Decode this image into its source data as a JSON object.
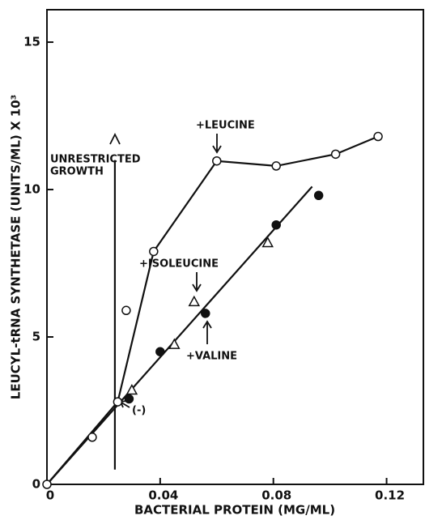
{
  "chart_data": {
    "type": "scatter",
    "xlabel": "BACTERIAL PROTEIN (MG/ML)",
    "ylabel": "LEUCYL-tRNA SYNTHETASE (UNITS/ML) X 10³",
    "xlim": [
      0,
      0.133
    ],
    "ylim": [
      0,
      16.1
    ],
    "xticks": [
      0,
      0.04,
      0.08,
      0.12
    ],
    "yticks": [
      0,
      5,
      10,
      15
    ],
    "series": [
      {
        "marker": "open-circle",
        "x": [
          0,
          0.016,
          0.025,
          0.028,
          0.0377,
          0.06,
          0.081,
          0.102,
          0.117
        ],
        "values": [
          0,
          1.6,
          2.8,
          5.9,
          7.9,
          10.97,
          10.8,
          11.2,
          11.8
        ]
      },
      {
        "marker": "filled-circle",
        "x": [
          0.029,
          0.04,
          0.056,
          0.081,
          0.096
        ],
        "values": [
          2.9,
          4.5,
          5.8,
          8.8,
          9.8
        ]
      },
      {
        "marker": "triangle",
        "x": [
          0.03,
          0.045,
          0.052,
          0.078
        ],
        "values": [
          3.2,
          4.75,
          6.2,
          8.2
        ]
      },
      {
        "marker": "line",
        "x": [
          0,
          0.025,
          0.0377,
          0.06,
          0.081,
          0.102,
          0.117
        ],
        "values": [
          0,
          2.8,
          7.9,
          10.97,
          10.8,
          11.2,
          11.8
        ]
      },
      {
        "marker": "line",
        "x": [
          0,
          0.0937
        ],
        "values": [
          0,
          10.1
        ]
      },
      {
        "marker": "line",
        "x": [
          0.024,
          0.024
        ],
        "values": [
          0.5,
          11
        ]
      }
    ],
    "annotations": [
      "+LEUCINE",
      "UNRESTRICTED",
      "GROWTH",
      "+ISOLEUCINE",
      "+VALINE",
      "(-)"
    ]
  }
}
